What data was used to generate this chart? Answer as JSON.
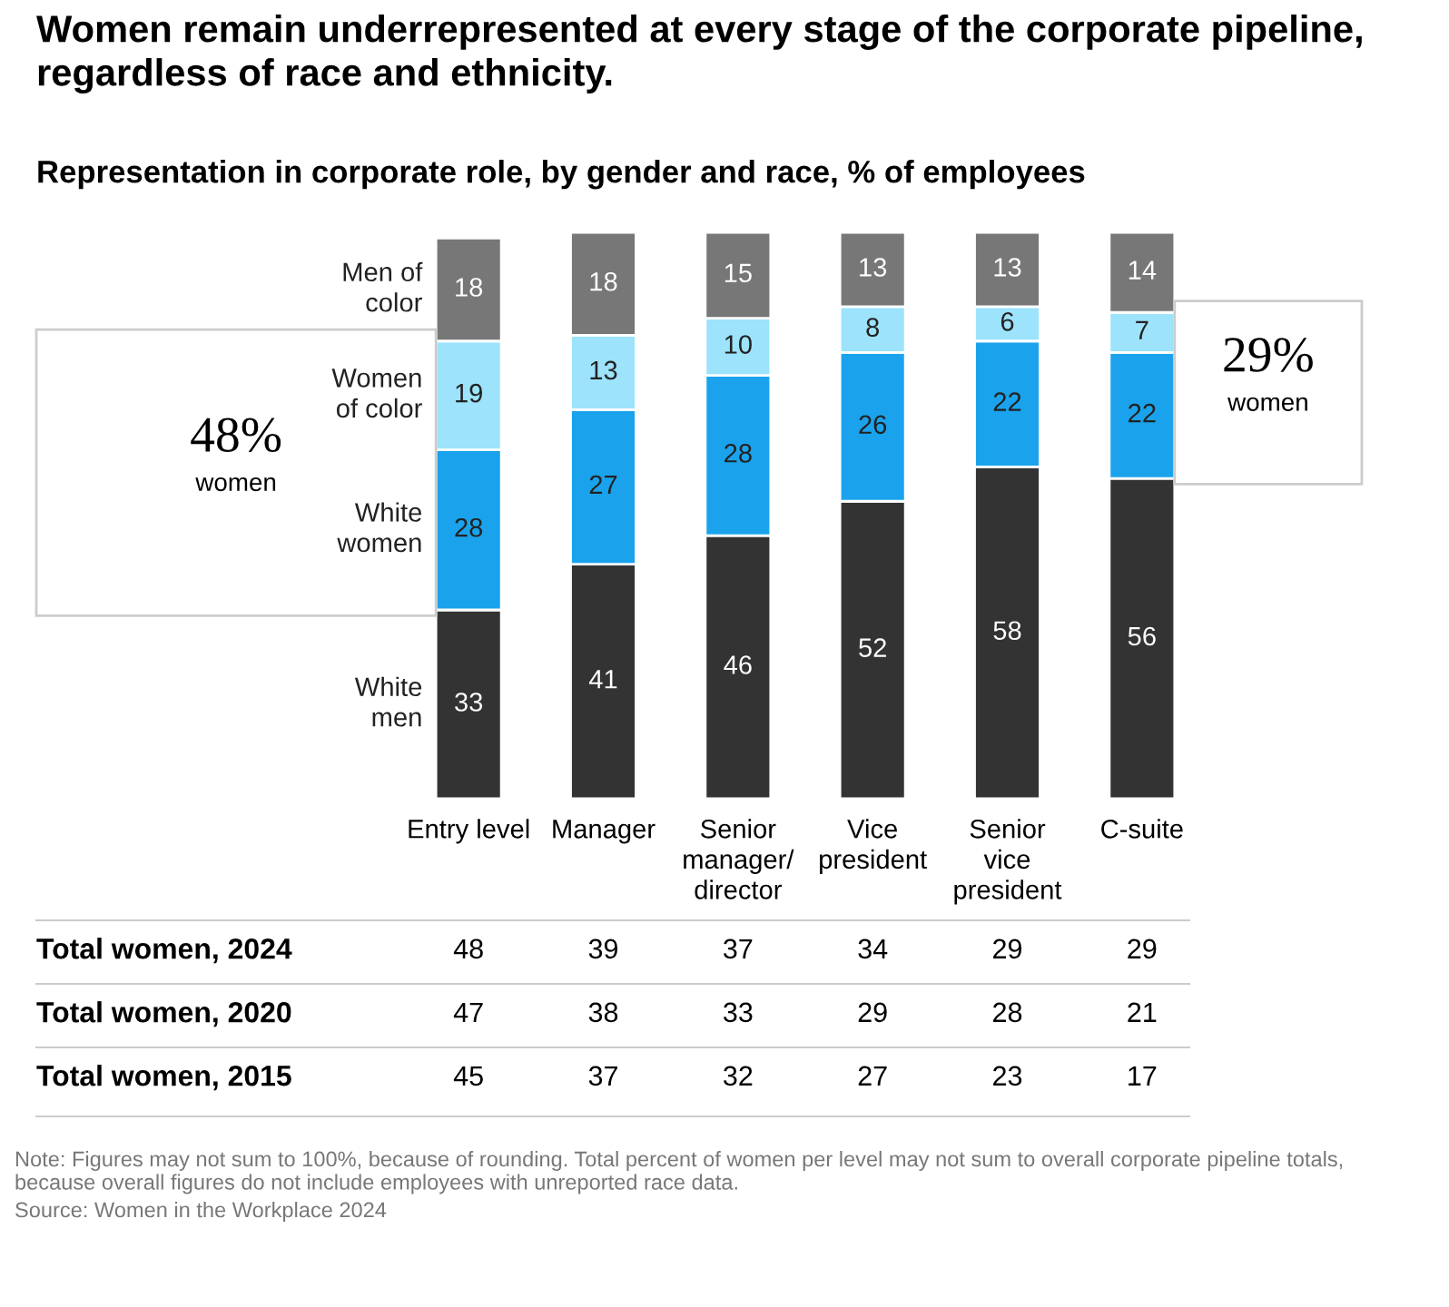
{
  "chart_data": {
    "type": "bar",
    "stacked": true,
    "data_labels": true,
    "legend": false,
    "title": "Women remain underrepresented at every stage of the corporate pipeline, regardless of race and ethnicity.",
    "subtitle": "Representation in corporate role, by gender and race, % of employees",
    "categories": [
      "Entry level",
      "Manager",
      "Senior\nmanager/\ndirector",
      "Vice\npresident",
      "Senior\nvice\npresident",
      "C-suite"
    ],
    "series": [
      {
        "name": "White\nmen",
        "color": "#333333",
        "values": [
          33,
          41,
          46,
          52,
          58,
          56
        ]
      },
      {
        "name": "White\nwomen",
        "color": "#1aa3ec",
        "values": [
          28,
          27,
          28,
          26,
          22,
          22
        ]
      },
      {
        "name": "Women\nof color",
        "color": "#9ce3fb",
        "values": [
          19,
          13,
          10,
          8,
          6,
          7
        ]
      },
      {
        "name": "Men of\ncolor",
        "color": "#777777",
        "values": [
          18,
          18,
          15,
          13,
          13,
          14
        ]
      }
    ],
    "annotations": [
      "48%",
      "women",
      "29%",
      "women",
      "Total women, 2024",
      "48",
      "39",
      "37",
      "34",
      "29",
      "29",
      "Total women, 2020",
      "47",
      "38",
      "33",
      "29",
      "28",
      "21",
      "Total women, 2015",
      "45",
      "37",
      "32",
      "27",
      "23",
      "17",
      "Note: Figures may not sum to 100%, because of rounding. Total percent of women per level may not sum to overall corporate pipeline totals, because overall figures do not include employees with unreported race data.",
      "Source: Women in the Workplace 2024"
    ]
  }
}
